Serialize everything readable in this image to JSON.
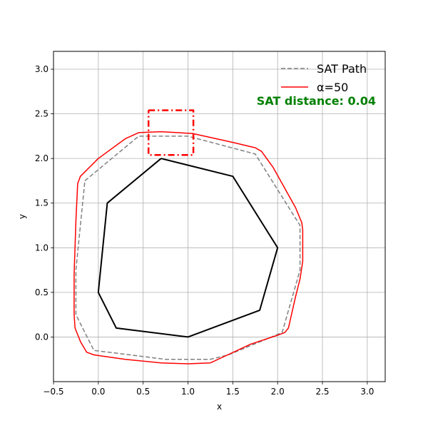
{
  "chart_data": {
    "type": "line",
    "xlabel": "x",
    "ylabel": "y",
    "xlim": [
      -0.5,
      3.2
    ],
    "ylim": [
      -0.5,
      3.2
    ],
    "grid": true,
    "legend_placement": "top-right",
    "x_ticks": [
      -0.5,
      0.0,
      0.5,
      1.0,
      1.5,
      2.0,
      2.5,
      3.0
    ],
    "x_tick_labels": [
      "−0.5",
      "0.0",
      "0.5",
      "1.0",
      "1.5",
      "2.0",
      "2.5",
      "3.0"
    ],
    "y_ticks": [
      0.0,
      0.5,
      1.0,
      1.5,
      2.0,
      2.5,
      3.0
    ],
    "y_tick_labels": [
      "0.0",
      "0.5",
      "1.0",
      "1.5",
      "2.0",
      "2.5",
      "3.0"
    ],
    "annotation": {
      "text": "SAT distance: 0.04",
      "color": "#008000"
    },
    "series": [
      {
        "name": "SAT Path",
        "color": "#808080",
        "style": "dashed",
        "points": [
          [
            -0.15,
            1.75
          ],
          [
            0.45,
            2.25
          ],
          [
            1.0,
            2.25
          ],
          [
            1.75,
            2.05
          ],
          [
            2.25,
            1.25
          ],
          [
            2.25,
            0.75
          ],
          [
            2.05,
            0.05
          ],
          [
            1.45,
            -0.2
          ],
          [
            1.25,
            -0.25
          ],
          [
            0.75,
            -0.25
          ],
          [
            -0.05,
            -0.15
          ],
          [
            -0.25,
            0.25
          ],
          [
            -0.25,
            0.75
          ],
          [
            -0.15,
            1.75
          ]
        ]
      },
      {
        "name": "α=50",
        "color": "#ff0000",
        "style": "solid",
        "points": [
          [
            -0.23,
            1.72
          ],
          [
            -0.2,
            1.8
          ],
          [
            0.0,
            2.0
          ],
          [
            0.3,
            2.22
          ],
          [
            0.45,
            2.29
          ],
          [
            0.7,
            2.3
          ],
          [
            1.05,
            2.28
          ],
          [
            1.5,
            2.18
          ],
          [
            1.75,
            2.12
          ],
          [
            1.82,
            2.08
          ],
          [
            1.95,
            1.9
          ],
          [
            2.2,
            1.45
          ],
          [
            2.27,
            1.28
          ],
          [
            2.28,
            1.2
          ],
          [
            2.28,
            0.85
          ],
          [
            2.25,
            0.65
          ],
          [
            2.2,
            0.45
          ],
          [
            2.12,
            0.1
          ],
          [
            2.08,
            0.05
          ],
          [
            2.0,
            0.02
          ],
          [
            1.7,
            -0.08
          ],
          [
            1.4,
            -0.22
          ],
          [
            1.25,
            -0.29
          ],
          [
            1.0,
            -0.3
          ],
          [
            0.7,
            -0.29
          ],
          [
            0.3,
            -0.25
          ],
          [
            -0.05,
            -0.2
          ],
          [
            -0.13,
            -0.17
          ],
          [
            -0.2,
            -0.05
          ],
          [
            -0.26,
            0.1
          ],
          [
            -0.27,
            0.25
          ],
          [
            -0.27,
            0.7
          ],
          [
            -0.25,
            1.3
          ],
          [
            -0.23,
            1.72
          ]
        ]
      },
      {
        "name": "",
        "color": "#000000",
        "style": "solid",
        "points": [
          [
            0.7,
            2.0
          ],
          [
            1.5,
            1.8
          ],
          [
            2.0,
            1.0
          ],
          [
            1.8,
            0.3
          ],
          [
            1.0,
            0.0
          ],
          [
            0.2,
            0.1
          ],
          [
            0.0,
            0.5
          ],
          [
            0.1,
            1.5
          ],
          [
            0.7,
            2.0
          ]
        ]
      },
      {
        "name": "",
        "color": "#ff0000",
        "style": "dashdot",
        "points": [
          [
            0.56,
            2.54
          ],
          [
            1.06,
            2.54
          ],
          [
            1.06,
            2.04
          ],
          [
            0.56,
            2.04
          ],
          [
            0.56,
            2.54
          ]
        ]
      }
    ]
  }
}
